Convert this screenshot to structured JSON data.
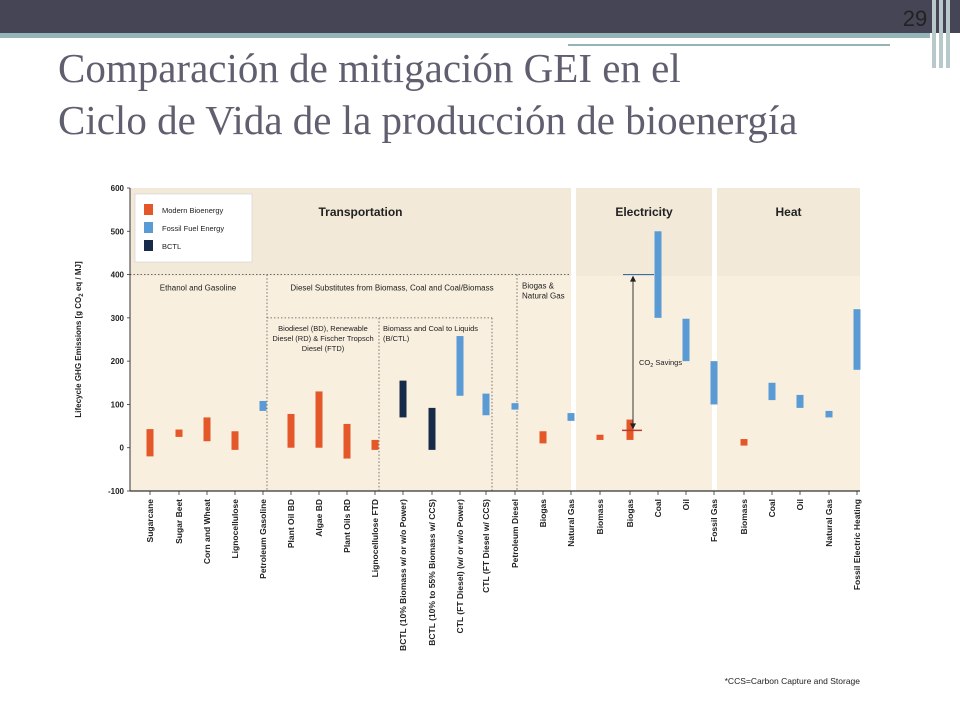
{
  "slide": {
    "number": "29",
    "title_line1": "Comparación de mitigación GEI en el",
    "title_line2": "Ciclo de Vida de la producción de bioenergía"
  },
  "colors": {
    "modern": "#e35728",
    "fossil": "#5b9bd5",
    "bctl": "#172b48",
    "panel_bg": "#f8efdf",
    "header_bg": "#ede4d2"
  },
  "chart_data": {
    "type": "range-bar",
    "ylabel": "Lifecycle GHG Emissions [g CO2 eq / MJ]",
    "ylabel_parts": [
      "Lifecycle GHG Emissions [g CO",
      "2",
      " eq / MJ]"
    ],
    "ylim": [
      -100,
      600
    ],
    "yticks": [
      "600",
      "500",
      "400",
      "300",
      "200",
      "100",
      "0",
      "-100"
    ],
    "legend": [
      {
        "label": "Modern Bioenergy",
        "color": "#e35728"
      },
      {
        "label": "Fossil Fuel Energy",
        "color": "#5b9bd5"
      },
      {
        "label": "BCTL",
        "color": "#172b48"
      }
    ],
    "panels": [
      {
        "title": "Transportation"
      },
      {
        "title": "Electricity"
      },
      {
        "title": "Heat"
      }
    ],
    "groups": [
      {
        "label": "Ethanol and Gasoline"
      },
      {
        "label": "Diesel Substitutes from Biomass, Coal and Coal/Biomass"
      },
      {
        "label_lines": [
          "Biogas &",
          "Natural Gas"
        ]
      }
    ],
    "subgroups": [
      {
        "label_lines": [
          "Biodiesel (BD), Renewable",
          "Diesel (RD) & Fischer Tropsch",
          "Diesel (FTD)"
        ]
      },
      {
        "label_lines": [
          "Biomass and Coal to Liquids",
          "(B/CTL)"
        ]
      }
    ],
    "categories": [
      {
        "label": "Sugarcane",
        "series": "Modern Bioenergy",
        "low": -20,
        "high": 43
      },
      {
        "label": "Sugar Beet",
        "series": "Modern Bioenergy",
        "low": 25,
        "high": 42
      },
      {
        "label": "Corn and Wheat",
        "series": "Modern Bioenergy",
        "low": 15,
        "high": 70
      },
      {
        "label": "Lignocellulose",
        "series": "Modern Bioenergy",
        "low": -5,
        "high": 38
      },
      {
        "label": "Petroleum Gasoline",
        "series": "Fossil Fuel Energy",
        "low": 85,
        "high": 108
      },
      {
        "label": "Plant Oil BD",
        "series": "Modern Bioenergy",
        "low": 0,
        "high": 78
      },
      {
        "label": "Algae BD",
        "series": "Modern Bioenergy",
        "low": 0,
        "high": 130
      },
      {
        "label": "Plant Oils RD",
        "series": "Modern Bioenergy",
        "low": -25,
        "high": 55
      },
      {
        "label": "Lignocellulose FTD",
        "series": "Modern Bioenergy",
        "low": -5,
        "high": 18
      },
      {
        "label": "BCTL (10% Biomass w/ or w/o Power)",
        "series": "BCTL",
        "low": 70,
        "high": 155
      },
      {
        "label": "BCTL (10% to 55% Biomass w/ CCS)",
        "series": "BCTL",
        "low": -5,
        "high": 92
      },
      {
        "label": "CTL (FT Diesel) (w/ or w/o Power)",
        "series": "Fossil Fuel Energy",
        "low": 120,
        "high": 258
      },
      {
        "label": "CTL (FT Diesel w/ CCS)",
        "series": "Fossil Fuel Energy",
        "low": 75,
        "high": 125
      },
      {
        "label": "Petroleum Diesel",
        "series": "Fossil Fuel Energy",
        "low": 88,
        "high": 103
      },
      {
        "label": "Biogas",
        "series": "Modern Bioenergy",
        "low": 10,
        "high": 38
      },
      {
        "label": "Natural Gas",
        "series": "Fossil Fuel Energy",
        "low": 62,
        "high": 80
      },
      {
        "label": "Biomass",
        "series": "Modern Bioenergy",
        "low": 18,
        "high": 30
      },
      {
        "label": "Biogas",
        "series": "Modern Bioenergy",
        "low": 18,
        "high": 65
      },
      {
        "label": "Coal",
        "series": "Fossil Fuel Energy",
        "low": 300,
        "high": 500
      },
      {
        "label": "Oil",
        "series": "Fossil Fuel Energy",
        "low": 200,
        "high": 298
      },
      {
        "label": "Fossil Gas",
        "series": "Fossil Fuel Energy",
        "low": 100,
        "high": 200
      },
      {
        "label": "Biomass",
        "series": "Modern Bioenergy",
        "low": 5,
        "high": 20
      },
      {
        "label": "Coal",
        "series": "Fossil Fuel Energy",
        "low": 110,
        "high": 150
      },
      {
        "label": "Oil",
        "series": "Fossil Fuel Energy",
        "low": 92,
        "high": 122
      },
      {
        "label": "Natural Gas",
        "series": "Fossil Fuel Energy",
        "low": 70,
        "high": 85
      },
      {
        "label": "Fossil Electric Heating",
        "series": "Fossil Fuel Energy",
        "low": 180,
        "high": 320
      }
    ],
    "annotation": {
      "label_parts": [
        "CO",
        "2",
        " Savings"
      ],
      "from": 40,
      "to": 400
    },
    "footnote": "*CCS=Carbon Capture and Storage"
  }
}
